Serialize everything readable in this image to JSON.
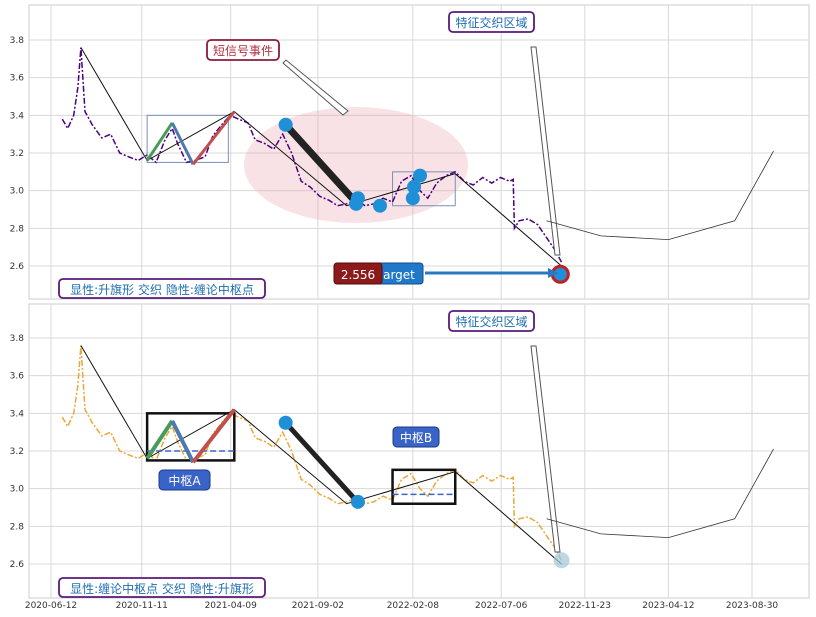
{
  "chart_data": [
    {
      "type": "line",
      "panel": "top",
      "title": "",
      "xlabel": "",
      "ylabel": "",
      "ylim": [
        2.43,
        3.98
      ],
      "yticks": [
        2.6,
        2.8,
        3.0,
        3.2,
        3.4,
        3.6,
        3.8
      ],
      "grid": true,
      "price_color": "#4b0082",
      "price_series": [
        [
          "2020-07-01",
          3.38
        ],
        [
          "2020-07-10",
          3.33
        ],
        [
          "2020-07-20",
          3.4
        ],
        [
          "2020-07-27",
          3.55
        ],
        [
          "2020-08-01",
          3.76
        ],
        [
          "2020-08-08",
          3.42
        ],
        [
          "2020-08-20",
          3.35
        ],
        [
          "2020-09-05",
          3.28
        ],
        [
          "2020-09-20",
          3.3
        ],
        [
          "2020-10-05",
          3.2
        ],
        [
          "2020-10-20",
          3.18
        ],
        [
          "2020-11-05",
          3.16
        ],
        [
          "2020-11-20",
          3.19
        ],
        [
          "2020-12-05",
          3.15
        ],
        [
          "2020-12-20",
          3.27
        ],
        [
          "2021-01-01",
          3.33
        ],
        [
          "2021-01-10",
          3.25
        ],
        [
          "2021-01-25",
          3.15
        ],
        [
          "2021-02-08",
          3.16
        ],
        [
          "2021-02-25",
          3.18
        ],
        [
          "2021-03-10",
          3.29
        ],
        [
          "2021-03-25",
          3.35
        ],
        [
          "2021-04-08",
          3.4
        ],
        [
          "2021-04-22",
          3.38
        ],
        [
          "2021-05-08",
          3.36
        ],
        [
          "2021-05-20",
          3.27
        ],
        [
          "2021-06-05",
          3.25
        ],
        [
          "2021-06-20",
          3.22
        ],
        [
          "2021-07-05",
          3.3
        ],
        [
          "2021-07-20",
          3.2
        ],
        [
          "2021-08-05",
          3.05
        ],
        [
          "2021-08-20",
          3.02
        ],
        [
          "2021-09-05",
          2.97
        ],
        [
          "2021-09-20",
          2.95
        ],
        [
          "2021-10-05",
          2.92
        ],
        [
          "2021-10-20",
          2.93
        ],
        [
          "2021-11-05",
          2.95
        ],
        [
          "2021-11-20",
          2.92
        ],
        [
          "2021-12-05",
          2.93
        ],
        [
          "2021-12-20",
          2.96
        ],
        [
          "2022-01-05",
          2.94
        ],
        [
          "2022-01-20",
          3.05
        ],
        [
          "2022-02-05",
          3.08
        ],
        [
          "2022-02-20",
          3.0
        ],
        [
          "2022-03-05",
          2.96
        ],
        [
          "2022-03-20",
          3.04
        ],
        [
          "2022-04-05",
          3.08
        ],
        [
          "2022-04-20",
          3.1
        ],
        [
          "2022-05-05",
          3.05
        ],
        [
          "2022-05-20",
          3.03
        ],
        [
          "2022-06-05",
          3.07
        ],
        [
          "2022-06-20",
          3.04
        ],
        [
          "2022-07-05",
          3.07
        ],
        [
          "2022-07-20",
          3.05
        ],
        [
          "2022-07-26",
          3.06
        ],
        [
          "2022-07-28",
          2.8
        ],
        [
          "2022-08-05",
          2.84
        ],
        [
          "2022-08-20",
          2.85
        ],
        [
          "2022-09-05",
          2.82
        ],
        [
          "2022-09-20",
          2.75
        ],
        [
          "2022-10-05",
          2.68
        ],
        [
          "2022-10-15",
          2.62
        ]
      ],
      "zigzag": [
        [
          "2020-08-01",
          3.76
        ],
        [
          "2020-11-20",
          3.16
        ],
        [
          "2021-04-15",
          3.42
        ],
        [
          "2021-10-20",
          2.92
        ],
        [
          "2022-04-20",
          3.09
        ],
        [
          "2022-10-15",
          2.6
        ]
      ],
      "flag_segments": [
        {
          "from": [
            "2020-11-20",
            3.16
          ],
          "to": [
            "2021-01-01",
            3.36
          ],
          "color": "#4a9a5a"
        },
        {
          "from": [
            "2021-01-01",
            3.36
          ],
          "to": [
            "2021-02-05",
            3.14
          ],
          "color": "#4e79b0"
        },
        {
          "from": [
            "2021-02-05",
            3.14
          ],
          "to": [
            "2021-04-15",
            3.42
          ],
          "color": "#c0504d"
        }
      ],
      "markers": [
        [
          "2021-07-10",
          3.35
        ],
        [
          "2021-11-08",
          2.96
        ],
        [
          "2021-11-05",
          2.93
        ],
        [
          "2021-12-15",
          2.92
        ],
        [
          "2022-02-10",
          3.02
        ],
        [
          "2022-02-20",
          3.08
        ],
        [
          "2022-02-08",
          2.96
        ],
        [
          "2022-10-13",
          2.556
        ]
      ],
      "target_value": 2.556,
      "target_label": "target",
      "projection": [
        [
          "2022-09-20",
          2.84
        ],
        [
          "2022-12-20",
          2.76
        ],
        [
          "2023-04-12",
          2.74
        ],
        [
          "2023-08-01",
          2.84
        ],
        [
          "2023-10-05",
          3.21
        ]
      ],
      "legend": "显性:升旗形 交织 隐性:缠论中枢点",
      "annotations": [
        "短信号事件",
        "特征交织区域"
      ]
    },
    {
      "type": "line",
      "panel": "bottom",
      "title": "",
      "xlabel": "",
      "ylabel": "",
      "ylim": [
        2.43,
        3.98
      ],
      "yticks": [
        2.6,
        2.8,
        3.0,
        3.2,
        3.4,
        3.6,
        3.8
      ],
      "grid": true,
      "price_color": "#e8a93a",
      "x_tick_labels": [
        "2020-06-12",
        "2020-11-11",
        "2021-04-09",
        "2021-09-02",
        "2022-02-08",
        "2022-07-06",
        "2022-11-23",
        "2023-04-12",
        "2023-08-30"
      ],
      "zhongshu": [
        {
          "name": "中枢A",
          "x0": "2020-11-20",
          "x1": "2021-04-15",
          "y0": 3.15,
          "y1": 3.4
        },
        {
          "name": "中枢B",
          "x0": "2022-01-05",
          "x1": "2022-04-20",
          "y0": 2.92,
          "y1": 3.1
        }
      ],
      "legend": "显性:缠论中枢点 交织 隐性:升旗形",
      "annotations": [
        "特征交织区域",
        "中枢A",
        "中枢B"
      ]
    }
  ],
  "labels": {
    "top_legend": "显性:升旗形 交织 隐性:缠论中枢点",
    "bottom_legend": "显性:缠论中枢点 交织 隐性:升旗形",
    "short_signal": "短信号事件",
    "feature_zone_top": "特征交织区域",
    "feature_zone_bottom": "特征交织区域",
    "target_value": "2.556",
    "target_text": "arget",
    "zs_a": "中枢A",
    "zs_b": "中枢B"
  },
  "colors": {
    "label_border": "#5a1a7a",
    "label_text_blue": "#1f6fb0",
    "short_signal_border": "#8b1a3a",
    "short_signal_text": "#b03040",
    "target_bg": "#1f78c8",
    "value_bg": "#8b1a1a",
    "zs_bg": "#3a63c8"
  }
}
